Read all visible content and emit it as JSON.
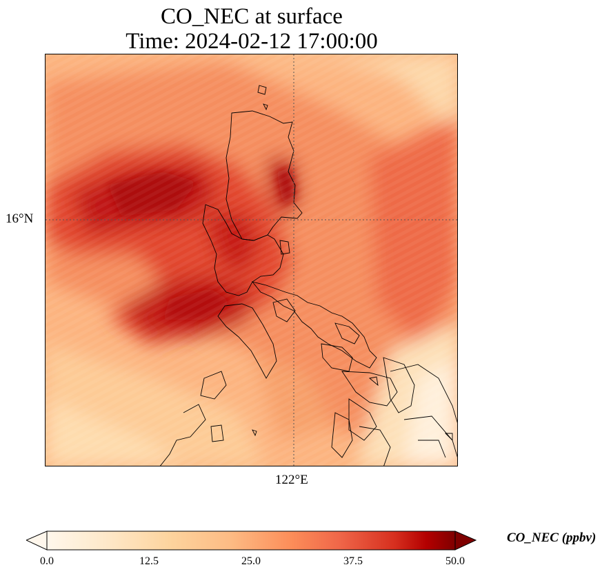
{
  "title_line1": "CO_NEC at surface",
  "title_line2": "Time: 2024-02-12 17:00:00",
  "map": {
    "lat_gridline_label": "16°N",
    "lon_gridline_label": "122°E",
    "gridline_style": "dotted",
    "field": "CO_NEC",
    "plume_description_hotspots": [
      {
        "region": "northwest plume west of Luzon",
        "value_ppbv": 45
      },
      {
        "region": "central Luzon",
        "value_ppbv": 43
      },
      {
        "region": "southwest plume",
        "value_ppbv": 42
      },
      {
        "region": "northern Luzon interior",
        "value_ppbv": 44
      }
    ]
  },
  "colorbar": {
    "label": "CO_NEC (ppbv)",
    "min": 0.0,
    "max": 50.0,
    "extend": "both",
    "colormap": "OrRd",
    "ticks": [
      "0.0",
      "12.5",
      "25.0",
      "37.5",
      "50.0"
    ],
    "colors": [
      "#fff7ec",
      "#fdd49e",
      "#fc8d59",
      "#d7301f",
      "#7f0000"
    ]
  }
}
